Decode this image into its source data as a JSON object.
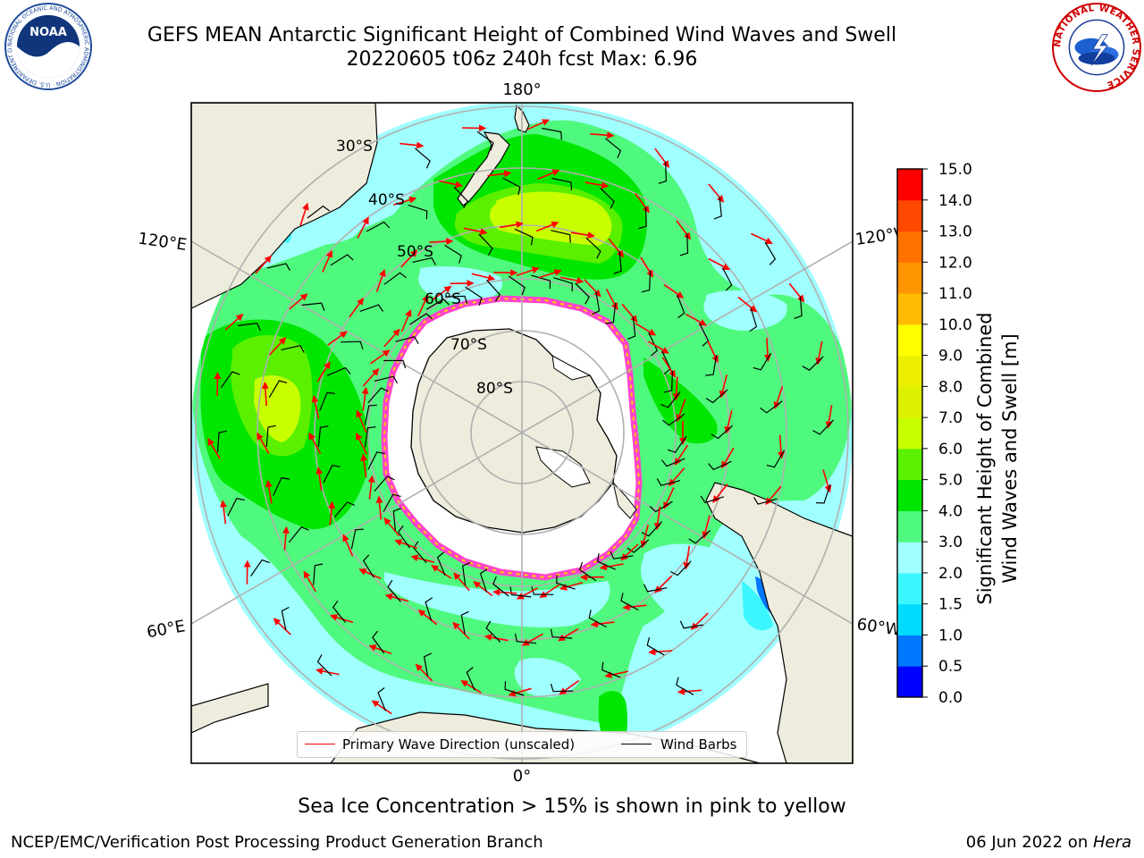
{
  "title": {
    "line1": "GEFS MEAN Antarctic Significant Height of Combined Wind Waves and Swell",
    "line2": "20220605 t06z 240h fcst   Max: 6.96"
  },
  "logos": {
    "noaa_text": "NOAA",
    "noaa_ring": "NATIONAL OCEANIC AND ATMOSPHERIC ADMINISTRATION · U.S. DEPARTMENT OF COMMERCE",
    "nws_ring": "NATIONAL WEATHER SERVICE"
  },
  "map": {
    "projection": "south-polar-stereographic",
    "longitude_labels": {
      "top": "180°",
      "bottom": "0°",
      "left_upper": "120°E",
      "left_lower": "60°E",
      "right_upper": "120°W",
      "right_lower": "60°W"
    },
    "latitude_labels": [
      "30°S",
      "40°S",
      "50°S",
      "60°S",
      "70°S",
      "80°S"
    ],
    "colors": {
      "land": "#eeecdc",
      "ice_shelf": "#ffffff",
      "ice_edge_pink": "#ff44cc",
      "ice_edge_yellow": "#ffd200",
      "graticule": "#b0b0b0",
      "wave_arrow": "#ff0000",
      "wind_barb": "#000000"
    }
  },
  "legend": {
    "items": [
      {
        "label": "Primary Wave Direction (unscaled)",
        "color": "#ff0000"
      },
      {
        "label": "Wind Barbs",
        "color": "#000000"
      }
    ]
  },
  "colorbar": {
    "label_line1": "Significant Height of Combined",
    "label_line2": "Wind Waves and Swell [m]",
    "levels": [
      "0.0",
      "0.5",
      "1.0",
      "1.5",
      "2.0",
      "3.0",
      "4.0",
      "5.0",
      "6.0",
      "7.0",
      "8.0",
      "9.0",
      "10.0",
      "11.0",
      "12.0",
      "13.0",
      "14.0",
      "15.0"
    ],
    "colors": [
      "#0000ff",
      "#0077ff",
      "#00dcff",
      "#3cf6ff",
      "#a0ffff",
      "#4ff97d",
      "#00e600",
      "#5af000",
      "#c8ff00",
      "#dcf000",
      "#ecf000",
      "#ffff00",
      "#ffbc00",
      "#ff9500",
      "#ff7200",
      "#ff4800",
      "#ff0000"
    ]
  },
  "caption": "Sea Ice Concentration > 15% is shown in pink to yellow",
  "footer": {
    "left": "NCEP/EMC/Verification Post Processing Product Generation Branch",
    "right_date": "06 Jun 2022 on ",
    "right_machine": "Hera"
  }
}
